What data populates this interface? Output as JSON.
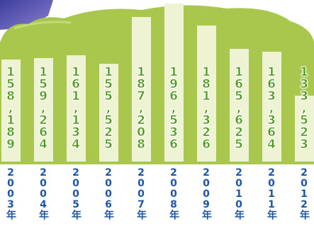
{
  "chart_data": {
    "type": "bar",
    "categories": [
      "2003年",
      "2004年",
      "2005年",
      "2006年",
      "2007年",
      "2008年",
      "2009年",
      "2010年",
      "2011年",
      "2012年"
    ],
    "values": [
      158189,
      159264,
      161134,
      155525,
      187208,
      196536,
      181326,
      165625,
      163364,
      133523
    ],
    "value_labels": [
      "158,189",
      "159,264",
      "161,134",
      "155,525",
      "187,208",
      "196,536",
      "181,326",
      "165,625",
      "163,364",
      "133,523"
    ],
    "color": "#eef3d3",
    "label_color": "#4e9b1c",
    "category_color": "#1d56a6"
  }
}
